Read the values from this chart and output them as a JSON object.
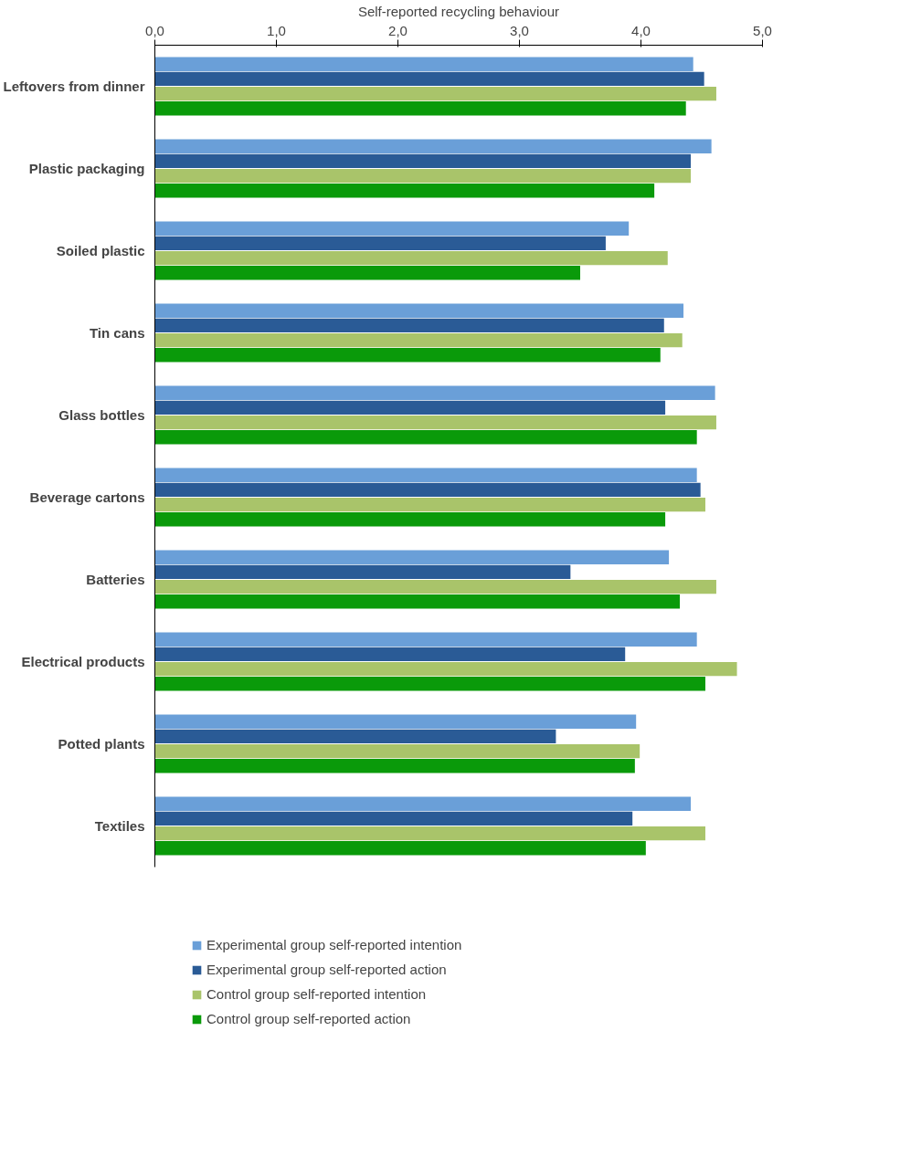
{
  "chart_data": {
    "type": "bar",
    "orientation": "horizontal",
    "xlabel": "Self-reported recycling behaviour",
    "categories": [
      "Leftovers from dinner",
      "Plastic packaging",
      "Soiled plastic",
      "Tin cans",
      "Glass bottles",
      "Beverage cartons",
      "Batteries",
      "Electrical products",
      "Potted plants",
      "Textiles"
    ],
    "xlim": [
      0,
      5
    ],
    "xticks": [
      {
        "value": 0,
        "label": "0,0"
      },
      {
        "value": 1,
        "label": "1,0"
      },
      {
        "value": 2,
        "label": "2,0"
      },
      {
        "value": 3,
        "label": "3,0"
      },
      {
        "value": 4,
        "label": "4,0"
      },
      {
        "value": 5,
        "label": "5,0"
      }
    ],
    "legend": "bottom",
    "series": [
      {
        "name": "Experimental group self-reported intention",
        "color": "#6a9fd8",
        "values": [
          4.43,
          4.58,
          3.9,
          4.35,
          4.61,
          4.46,
          4.23,
          4.46,
          3.96,
          4.41
        ]
      },
      {
        "name": "Experimental group self-reported action",
        "color": "#2a5b96",
        "values": [
          4.52,
          4.41,
          3.71,
          4.19,
          4.2,
          4.49,
          3.42,
          3.87,
          3.3,
          3.93
        ]
      },
      {
        "name": "Control group self-reported intention",
        "color": "#a9c46a",
        "values": [
          4.62,
          4.41,
          4.22,
          4.34,
          4.62,
          4.53,
          4.62,
          4.79,
          3.99,
          4.53
        ]
      },
      {
        "name": "Control group self-reported action",
        "color": "#0a9a0a",
        "values": [
          4.37,
          4.11,
          3.5,
          4.16,
          4.46,
          4.2,
          4.32,
          4.53,
          3.95,
          4.04
        ]
      }
    ]
  }
}
